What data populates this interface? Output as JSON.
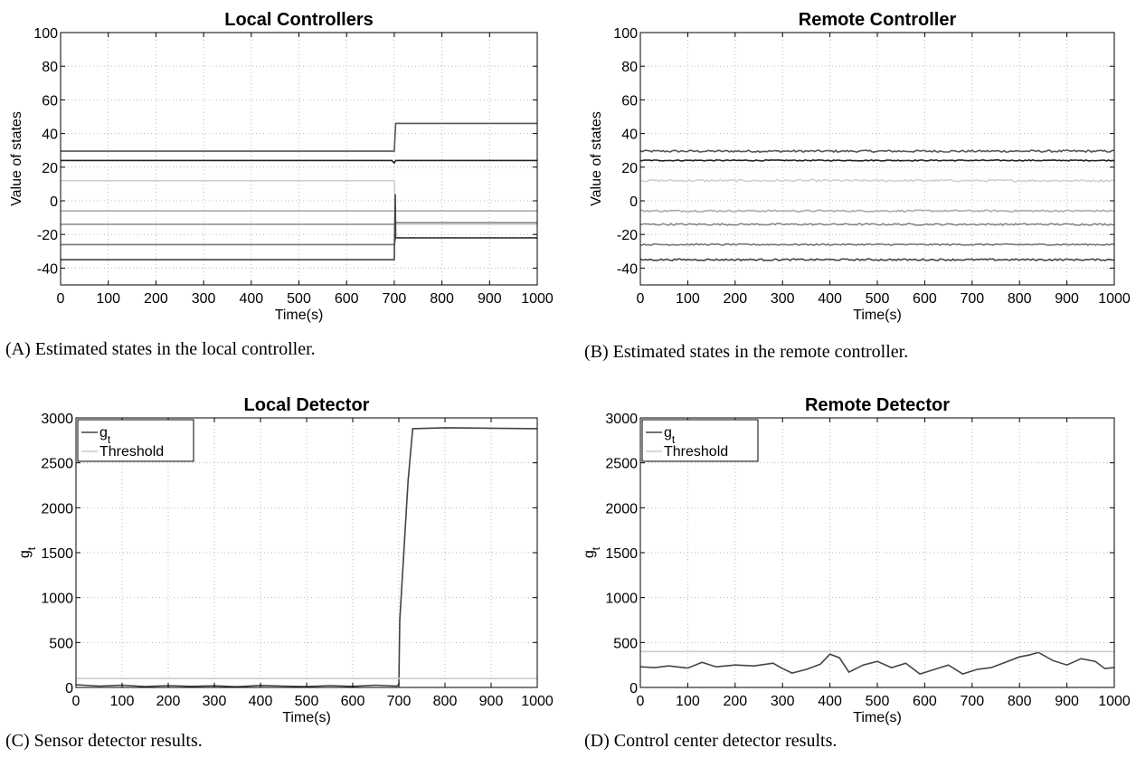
{
  "chart_data": [
    {
      "id": "A",
      "type": "line",
      "title": "Local Controllers",
      "xlabel": "Time(s)",
      "ylabel": "Value of states",
      "xlim": [
        0,
        1000
      ],
      "ylim": [
        -50,
        100
      ],
      "xticks": [
        0,
        100,
        200,
        300,
        400,
        500,
        600,
        700,
        800,
        900,
        1000
      ],
      "yticks": [
        -40,
        -20,
        0,
        20,
        40,
        60,
        80,
        100
      ],
      "grid": true,
      "caption": "(A) Estimated states in the local controller.",
      "series": [
        {
          "color": "#555555",
          "points": [
            [
              0,
              29.5
            ],
            [
              700,
              29.5
            ],
            [
              703,
              46
            ],
            [
              1000,
              46
            ]
          ]
        },
        {
          "color": "#222222",
          "points": [
            [
              0,
              24
            ],
            [
              695,
              24
            ],
            [
              700,
              22.5
            ],
            [
              703,
              24
            ],
            [
              1000,
              24
            ]
          ]
        },
        {
          "color": "#cccccc",
          "points": [
            [
              0,
              12
            ],
            [
              700,
              12
            ],
            [
              703,
              -14
            ],
            [
              1000,
              -14
            ]
          ]
        },
        {
          "color": "#aaaaaa",
          "points": [
            [
              0,
              -6
            ],
            [
              700,
              -6
            ],
            [
              703,
              -6
            ],
            [
              1000,
              -6
            ]
          ]
        },
        {
          "color": "#888888",
          "points": [
            [
              0,
              -14
            ],
            [
              700,
              -14
            ],
            [
              703,
              -13
            ],
            [
              1000,
              -13
            ]
          ]
        },
        {
          "color": "#777777",
          "points": [
            [
              0,
              -26
            ],
            [
              700,
              -26
            ],
            [
              703,
              -22
            ],
            [
              1000,
              -22
            ]
          ]
        },
        {
          "color": "#444444",
          "points": [
            [
              0,
              -35
            ],
            [
              700,
              -35
            ],
            [
              702,
              4
            ],
            [
              703,
              -22
            ],
            [
              1000,
              -22
            ]
          ]
        }
      ]
    },
    {
      "id": "B",
      "type": "line",
      "title": "Remote Controller",
      "xlabel": "Time(s)",
      "ylabel": "Value of states",
      "xlim": [
        0,
        1000
      ],
      "ylim": [
        -50,
        100
      ],
      "xticks": [
        0,
        100,
        200,
        300,
        400,
        500,
        600,
        700,
        800,
        900,
        1000
      ],
      "yticks": [
        -40,
        -20,
        0,
        20,
        40,
        60,
        80,
        100
      ],
      "grid": true,
      "caption": "(B) Estimated states in the remote controller.",
      "series": [
        {
          "color": "#555555",
          "level": 29.5,
          "noise": 0.6
        },
        {
          "color": "#222222",
          "level": 24,
          "noise": 0.3
        },
        {
          "color": "#d0d0d0",
          "level": 12,
          "noise": 0.6
        },
        {
          "color": "#aaaaaa",
          "level": -6,
          "noise": 0.5
        },
        {
          "color": "#888888",
          "level": -14,
          "noise": 0.5
        },
        {
          "color": "#777777",
          "level": -26,
          "noise": 0.4
        },
        {
          "color": "#444444",
          "level": -35,
          "noise": 0.5
        }
      ]
    },
    {
      "id": "C",
      "type": "line",
      "title": "Local Detector",
      "xlabel": "Time(s)",
      "ylabel": "g",
      "ylabel_sub": "t",
      "xlim": [
        0,
        1000
      ],
      "ylim": [
        0,
        3000
      ],
      "xticks": [
        0,
        100,
        200,
        300,
        400,
        500,
        600,
        700,
        800,
        900,
        1000
      ],
      "yticks": [
        0,
        500,
        1000,
        1500,
        2000,
        2500,
        3000
      ],
      "grid": true,
      "legend": "top-left",
      "caption": "(C) Sensor detector results.",
      "series": [
        {
          "name": "g",
          "name_sub": "t",
          "color": "#444444",
          "points": [
            [
              0,
              30
            ],
            [
              50,
              15
            ],
            [
              100,
              25
            ],
            [
              150,
              10
            ],
            [
              200,
              20
            ],
            [
              250,
              12
            ],
            [
              300,
              18
            ],
            [
              350,
              8
            ],
            [
              400,
              22
            ],
            [
              450,
              15
            ],
            [
              500,
              10
            ],
            [
              550,
              20
            ],
            [
              600,
              12
            ],
            [
              650,
              25
            ],
            [
              695,
              15
            ],
            [
              700,
              30
            ],
            [
              702,
              750
            ],
            [
              705,
              1000
            ],
            [
              720,
              2300
            ],
            [
              730,
              2880
            ],
            [
              800,
              2890
            ],
            [
              900,
              2885
            ],
            [
              1000,
              2880
            ]
          ]
        },
        {
          "name": "Threshold",
          "color": "#cccccc",
          "points": [
            [
              0,
              100
            ],
            [
              1000,
              100
            ]
          ]
        }
      ]
    },
    {
      "id": "D",
      "type": "line",
      "title": "Remote Detector",
      "xlabel": "Time(s)",
      "ylabel": "g",
      "ylabel_sub": "t",
      "xlim": [
        0,
        1000
      ],
      "ylim": [
        0,
        3000
      ],
      "xticks": [
        0,
        100,
        200,
        300,
        400,
        500,
        600,
        700,
        800,
        900,
        1000
      ],
      "yticks": [
        0,
        500,
        1000,
        1500,
        2000,
        2500,
        3000
      ],
      "grid": true,
      "legend": "top-left",
      "caption": "(D) Control center detector results.",
      "series": [
        {
          "name": "g",
          "name_sub": "t",
          "color": "#444444",
          "points": [
            [
              0,
              230
            ],
            [
              30,
              220
            ],
            [
              60,
              240
            ],
            [
              100,
              215
            ],
            [
              130,
              280
            ],
            [
              160,
              230
            ],
            [
              200,
              250
            ],
            [
              240,
              240
            ],
            [
              280,
              270
            ],
            [
              300,
              210
            ],
            [
              320,
              160
            ],
            [
              350,
              200
            ],
            [
              380,
              260
            ],
            [
              400,
              370
            ],
            [
              420,
              330
            ],
            [
              440,
              170
            ],
            [
              470,
              250
            ],
            [
              500,
              290
            ],
            [
              530,
              220
            ],
            [
              560,
              270
            ],
            [
              590,
              150
            ],
            [
              620,
              200
            ],
            [
              650,
              250
            ],
            [
              680,
              150
            ],
            [
              710,
              200
            ],
            [
              740,
              220
            ],
            [
              770,
              280
            ],
            [
              800,
              340
            ],
            [
              820,
              360
            ],
            [
              840,
              390
            ],
            [
              870,
              300
            ],
            [
              900,
              250
            ],
            [
              930,
              320
            ],
            [
              960,
              290
            ],
            [
              980,
              210
            ],
            [
              1000,
              220
            ]
          ]
        },
        {
          "name": "Threshold",
          "color": "#cccccc",
          "points": [
            [
              0,
              400
            ],
            [
              1000,
              400
            ]
          ]
        }
      ]
    }
  ]
}
